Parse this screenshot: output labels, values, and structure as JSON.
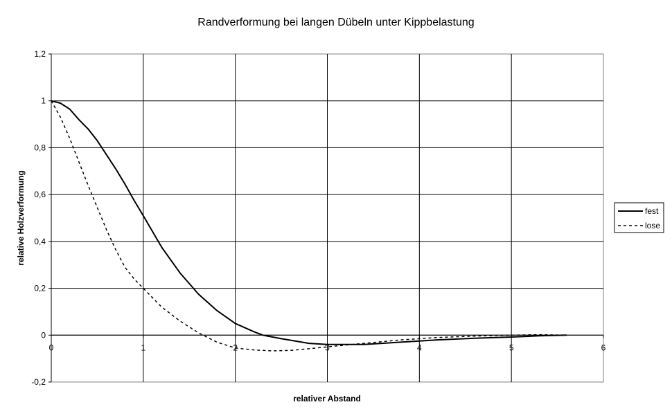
{
  "chart_data": {
    "type": "line",
    "title": "Randverformung bei langen Dübeln unter Kippbelastung",
    "xlabel": "relativer Abstand",
    "ylabel": "relative Holzverformung",
    "xlim": [
      0,
      6
    ],
    "ylim": [
      -0.2,
      1.2
    ],
    "x_ticks": [
      "0",
      "1",
      "2",
      "3",
      "4",
      "5",
      "6"
    ],
    "y_ticks": [
      "-0,2",
      "0",
      "0,2",
      "0,4",
      "0,6",
      "0,8",
      "1",
      "1,2"
    ],
    "grid": true,
    "legend_position": "right",
    "series": [
      {
        "name": "fest",
        "style": "solid",
        "color": "#000000",
        "x": [
          0,
          0.1,
          0.2,
          0.3,
          0.4,
          0.5,
          0.6,
          0.7,
          0.8,
          0.9,
          1.0,
          1.2,
          1.4,
          1.6,
          1.8,
          2.0,
          2.2,
          2.3,
          2.5,
          2.8,
          3.0,
          3.4,
          3.8,
          4.2,
          4.6,
          5.0,
          5.3,
          5.6
        ],
        "y": [
          1.0,
          0.99,
          0.965,
          0.92,
          0.88,
          0.83,
          0.77,
          0.71,
          0.645,
          0.575,
          0.51,
          0.375,
          0.265,
          0.175,
          0.105,
          0.05,
          0.015,
          0.0,
          -0.015,
          -0.035,
          -0.04,
          -0.04,
          -0.03,
          -0.02,
          -0.013,
          -0.008,
          -0.003,
          0.0
        ]
      },
      {
        "name": "lose",
        "style": "dashed",
        "color": "#000000",
        "x": [
          0,
          0.1,
          0.2,
          0.3,
          0.4,
          0.5,
          0.6,
          0.7,
          0.8,
          0.9,
          1.0,
          1.2,
          1.4,
          1.6,
          1.8,
          2.0,
          2.2,
          2.4,
          2.6,
          2.8,
          3.0,
          3.4,
          3.8,
          4.2,
          4.6,
          5.0,
          5.3,
          5.6
        ],
        "y": [
          1.0,
          0.93,
          0.84,
          0.74,
          0.64,
          0.545,
          0.45,
          0.365,
          0.29,
          0.24,
          0.2,
          0.12,
          0.06,
          0.01,
          -0.03,
          -0.055,
          -0.063,
          -0.067,
          -0.065,
          -0.058,
          -0.05,
          -0.035,
          -0.02,
          -0.01,
          -0.004,
          0.0,
          0.002,
          0.0
        ]
      }
    ]
  }
}
